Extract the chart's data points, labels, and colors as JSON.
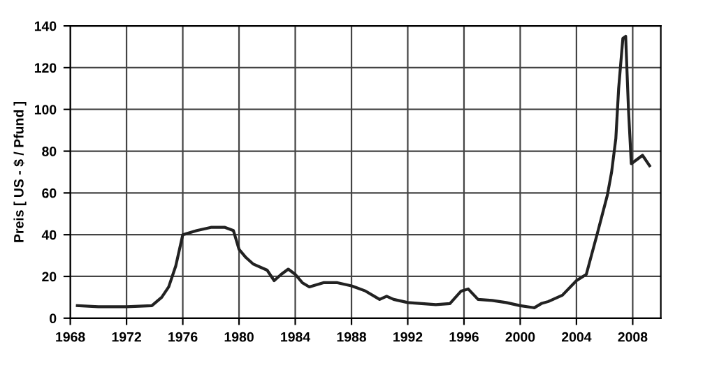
{
  "chart_data": {
    "type": "line",
    "ylabel": "Preis [ US - $ / Pfund ]",
    "x": [
      1968.5,
      1970,
      1972,
      1973.8,
      1974.5,
      1975,
      1975.5,
      1976,
      1977,
      1978,
      1979,
      1979.6,
      1980,
      1980.5,
      1981,
      1982,
      1982.5,
      1983,
      1983.5,
      1984,
      1984.5,
      1985,
      1986,
      1987,
      1988,
      1989,
      1990,
      1990.5,
      1991,
      1992,
      1993,
      1994,
      1995,
      1995.8,
      1996.3,
      1997,
      1998,
      1999,
      2000,
      2001,
      2001.5,
      2002,
      2003,
      2004,
      2004.7,
      2005.5,
      2006.2,
      2006.5,
      2006.8,
      2007.0,
      2007.3,
      2007.5,
      2007.7,
      2007.9,
      2008.3,
      2008.7,
      2009.2
    ],
    "values": [
      6,
      5.5,
      5.5,
      6,
      10,
      15,
      25,
      40,
      42,
      43.5,
      43.5,
      42,
      33,
      29,
      26,
      23,
      18,
      21,
      23.5,
      21,
      17,
      15,
      17,
      17,
      15.5,
      13,
      9,
      10.5,
      9,
      7.5,
      7,
      6.5,
      7,
      13,
      14,
      9,
      8.5,
      7.5,
      6,
      5,
      7,
      8,
      11,
      18,
      21,
      41,
      59,
      70,
      86,
      110,
      134,
      135,
      100,
      74,
      76,
      78,
      73
    ],
    "color": "#222222",
    "xlim": [
      1968,
      2010
    ],
    "xticks": [
      1968,
      1972,
      1976,
      1980,
      1984,
      1988,
      1992,
      1996,
      2000,
      2004,
      2008
    ],
    "ylim": [
      0,
      140
    ],
    "yticks": [
      0,
      20,
      40,
      60,
      80,
      100,
      120,
      140
    ],
    "grid": true,
    "marker": "none",
    "line_style": "solid",
    "legend": false
  }
}
